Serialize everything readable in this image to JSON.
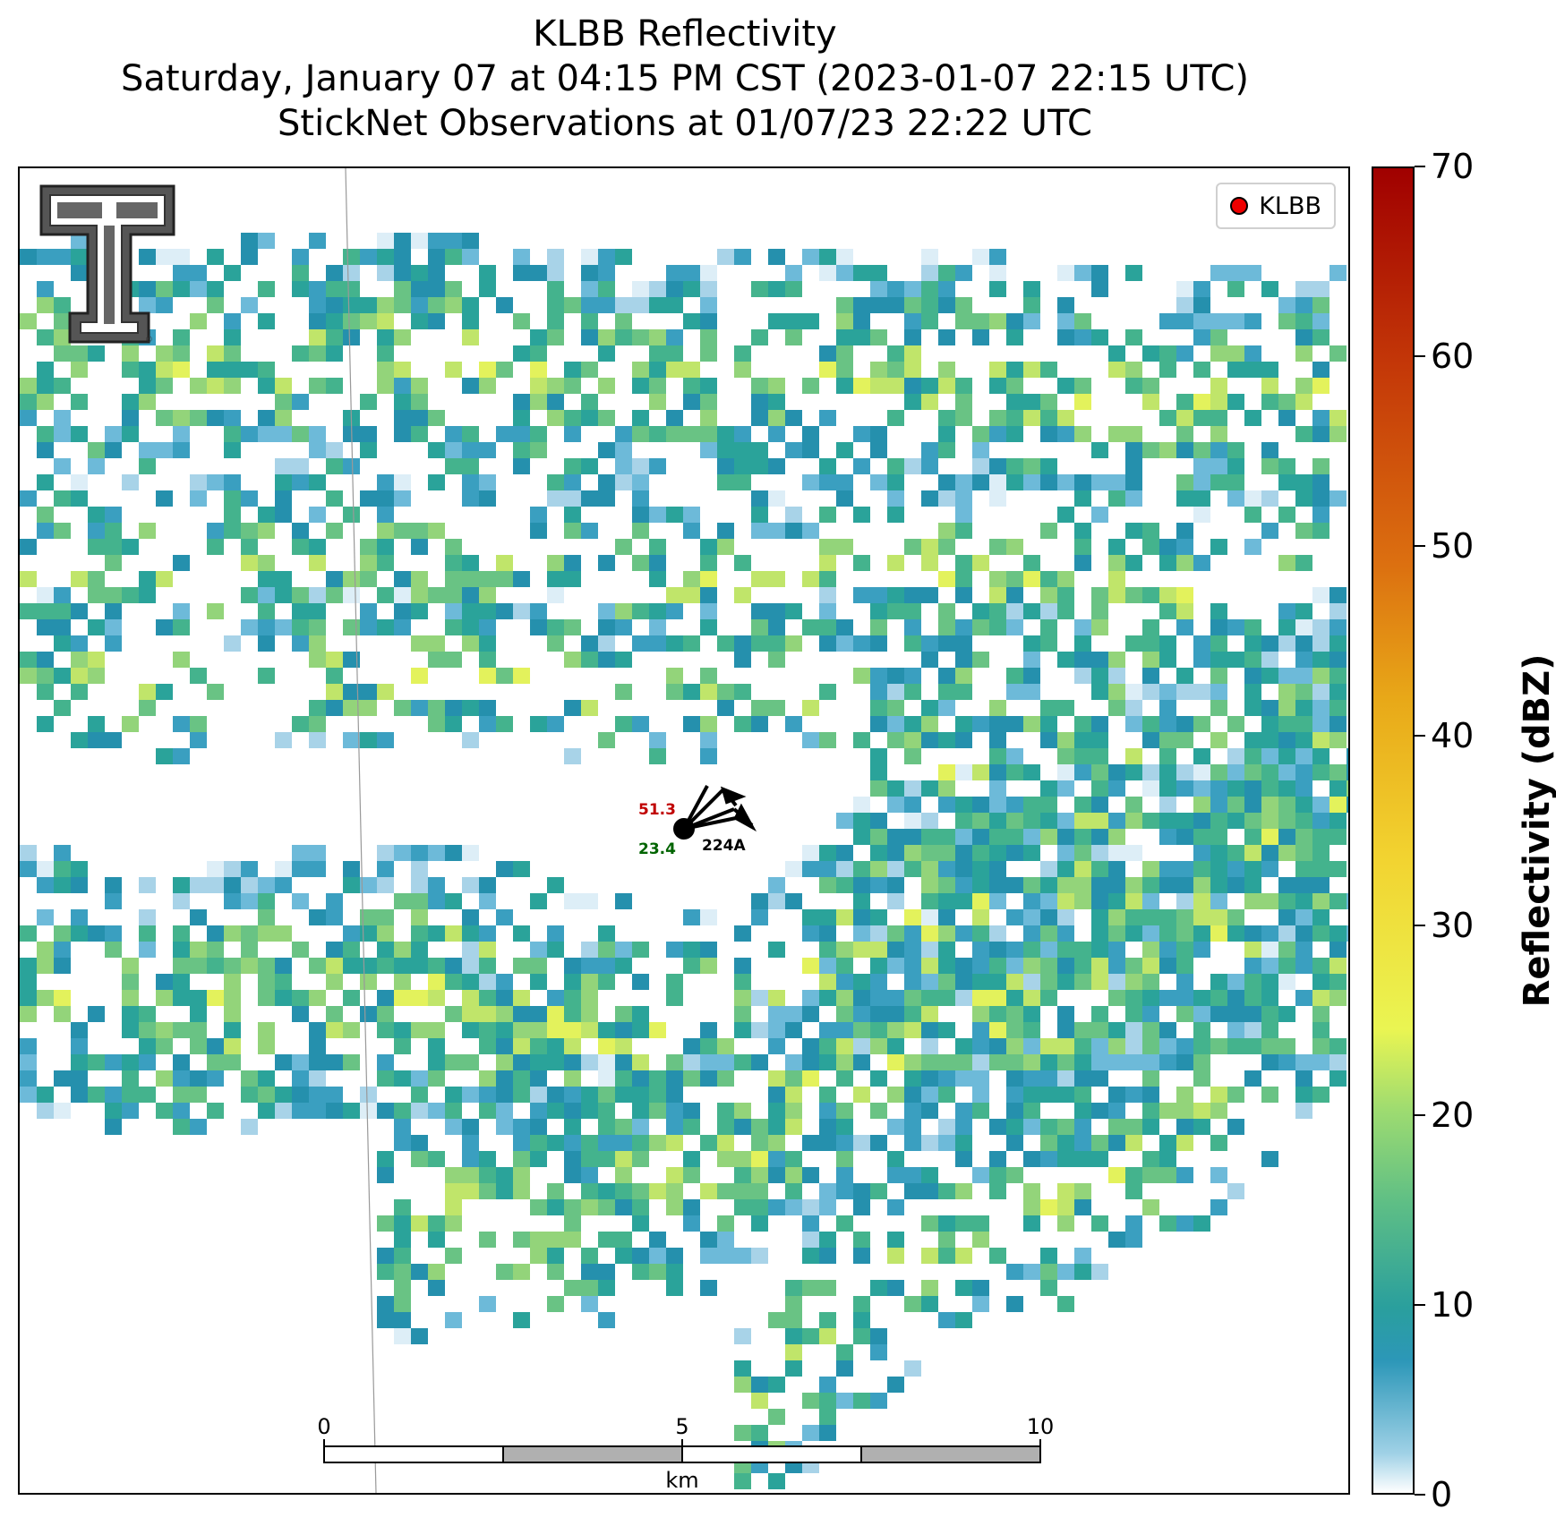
{
  "title": {
    "line1": "KLBB Reflectivity",
    "line2": "Saturday, January 07 at 04:15 PM CST (2023-01-07 22:15 UTC)",
    "line3": "StickNet Observations at 01/07/23 22:22 UTC"
  },
  "legend": {
    "label": "KLBB",
    "marker_color": "#ee0000"
  },
  "station": {
    "id": "224A",
    "temperature": "51.3",
    "dewpoint": "23.4"
  },
  "scalebar": {
    "labels": [
      "0",
      "5",
      "10"
    ],
    "unit": "km"
  },
  "colorbar": {
    "label": "Reflectivity (dBZ)",
    "ticks": [
      "0",
      "10",
      "20",
      "30",
      "40",
      "50",
      "60",
      "70"
    ],
    "min": 0,
    "max": 70
  },
  "logo": {
    "icon": "texas-tech-double-t-logo"
  },
  "colors": {
    "temp": "#c00000",
    "dew": "#006400",
    "accent_red": "#ee0000"
  }
}
